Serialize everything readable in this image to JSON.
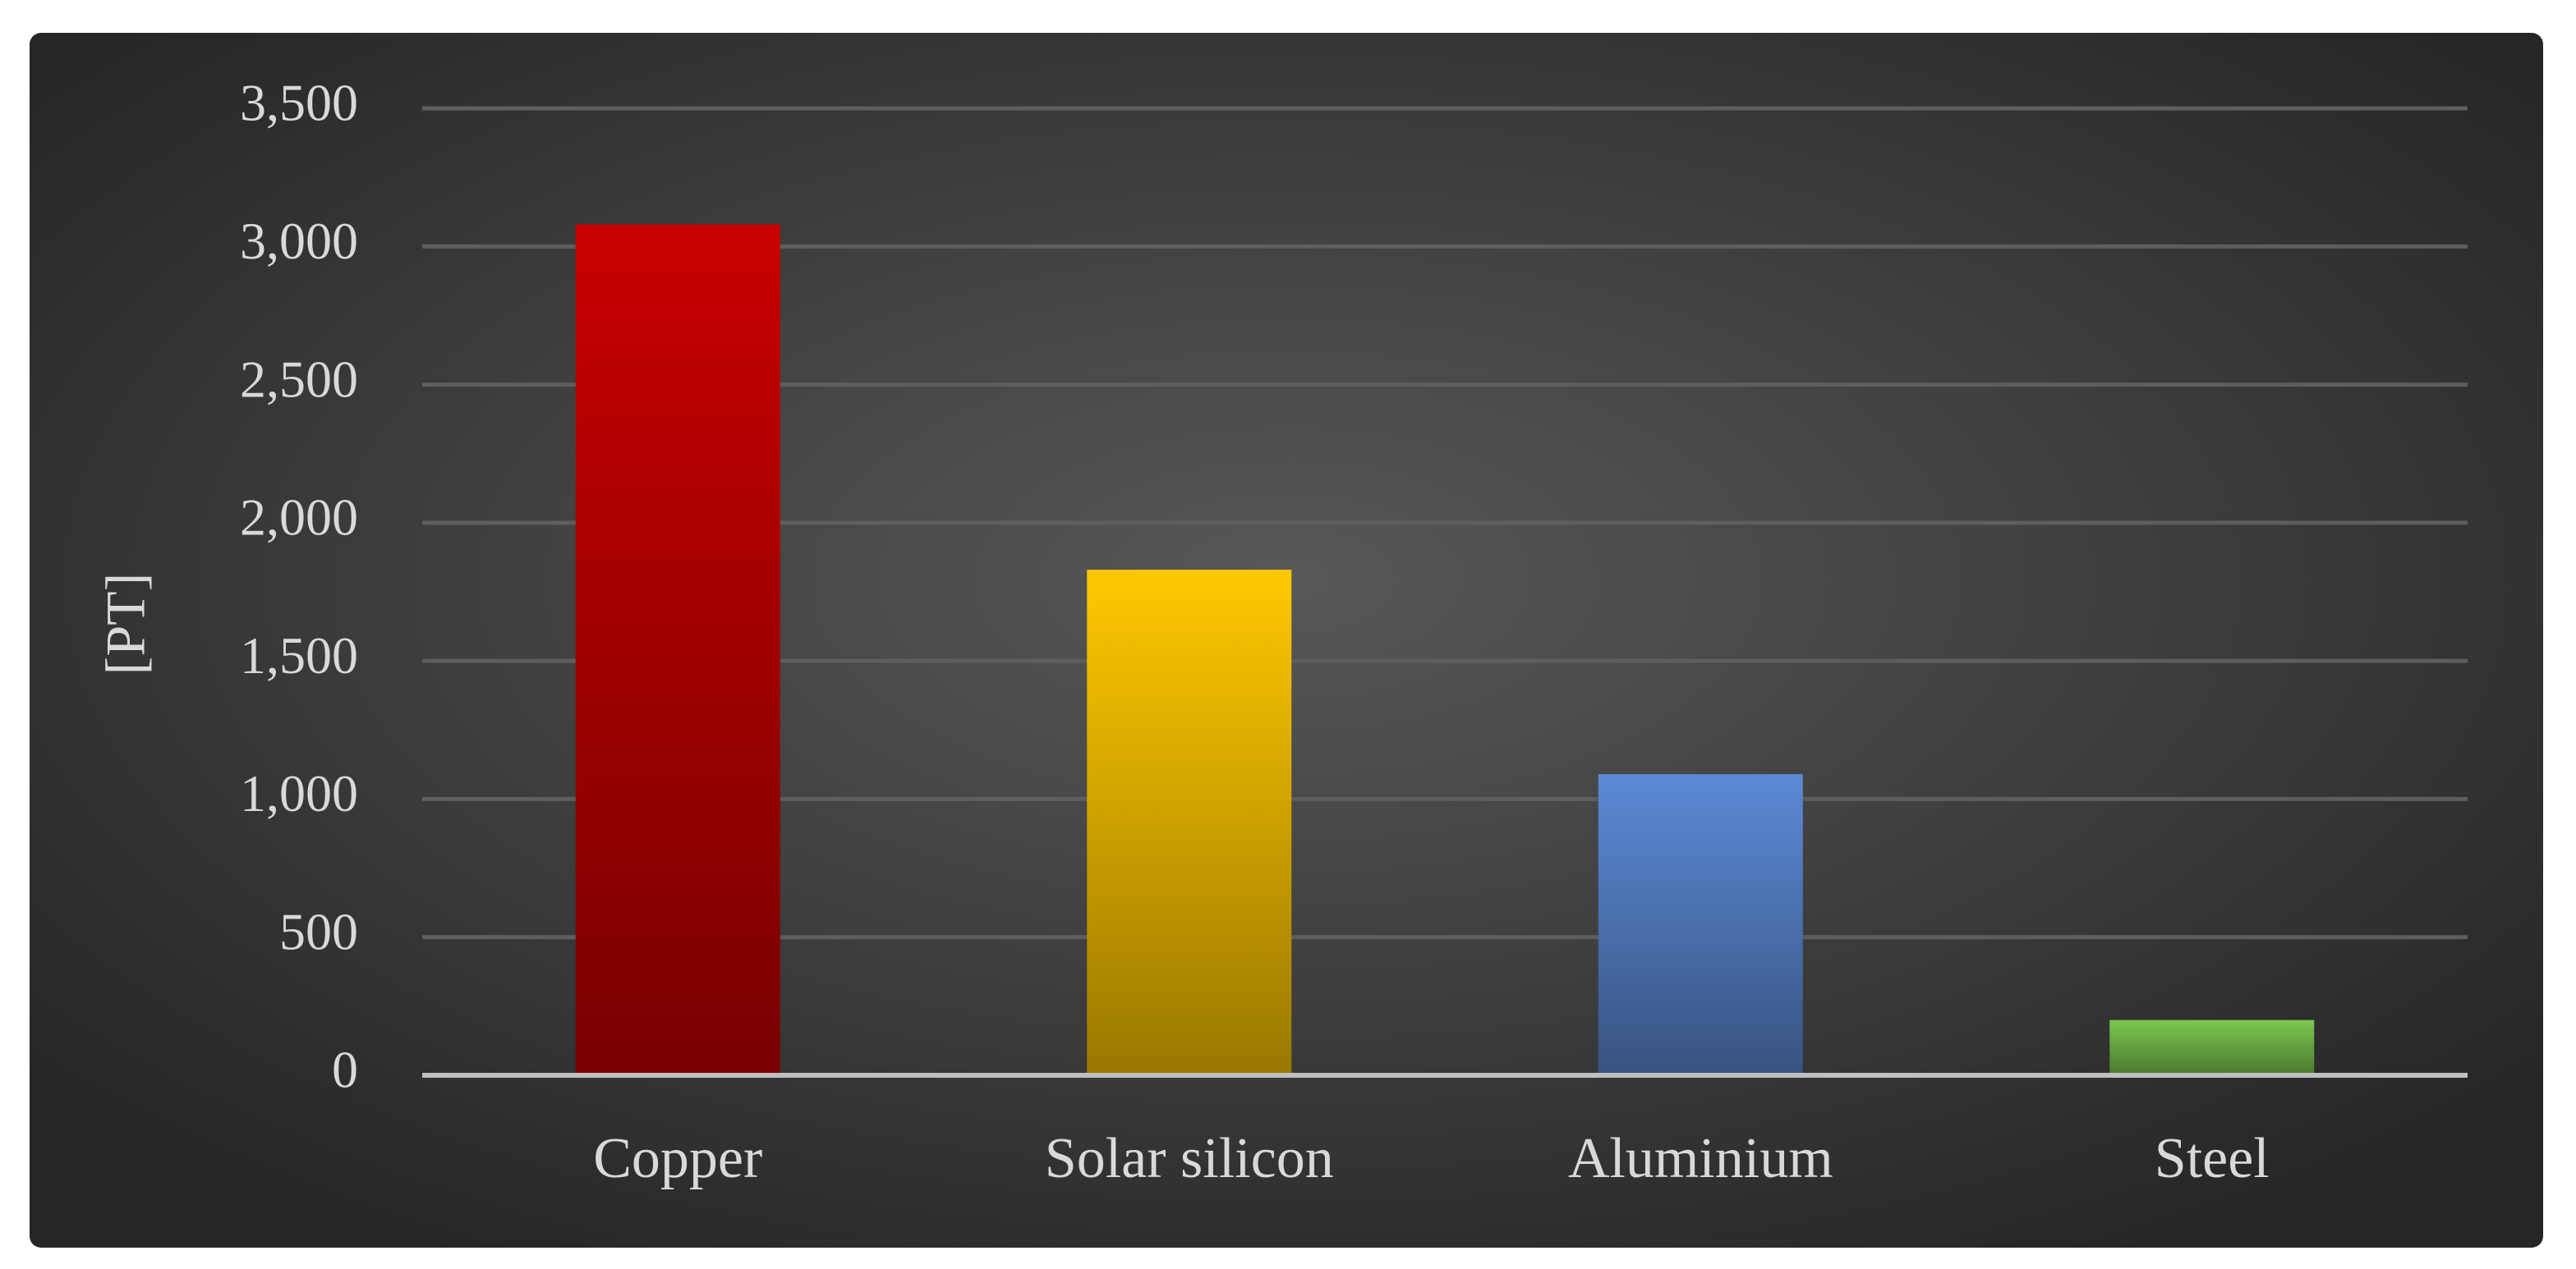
{
  "chart_data": {
    "type": "bar",
    "y_label": "[PT]",
    "categories": [
      "Copper",
      "Solar silicon",
      "Aluminium",
      "Steel"
    ],
    "values": [
      3080,
      1830,
      1090,
      200
    ],
    "colors": [
      "#c80000",
      "#ffc800",
      "#5b8ad6",
      "#7cc850"
    ],
    "ylim": [
      0,
      3500
    ],
    "yticks": [
      0,
      {
        "value": 500,
        "label": "500"
      },
      {
        "value": 1000,
        "label": "1,000"
      },
      {
        "value": 1500,
        "label": "1,500"
      },
      {
        "value": 2000,
        "label": "2,000"
      },
      {
        "value": 2500,
        "label": "2,500"
      },
      {
        "value": 3000,
        "label": "3,000"
      },
      {
        "value": 3500,
        "label": "3,500"
      }
    ],
    "grid": true
  }
}
